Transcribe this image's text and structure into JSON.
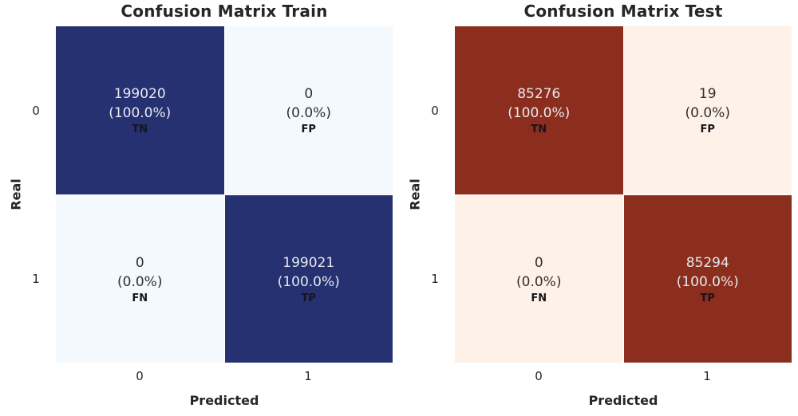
{
  "colors": {
    "train_high": "#253170",
    "train_low": "#f4f9fd",
    "test_high": "#8b2e1e",
    "test_low": "#fdf1e8",
    "title_text": "#262626"
  },
  "axes": {
    "x_label": "Predicted",
    "y_label": "Real",
    "x_ticks": [
      "0",
      "1"
    ],
    "y_ticks": [
      "0",
      "1"
    ]
  },
  "charts": [
    {
      "title": "Confusion Matrix Train",
      "cells": [
        {
          "value": "199020",
          "percent": "(100.0%)",
          "abbr": "TN",
          "tone": "high"
        },
        {
          "value": "0",
          "percent": "(0.0%)",
          "abbr": "FP",
          "tone": "low"
        },
        {
          "value": "0",
          "percent": "(0.0%)",
          "abbr": "FN",
          "tone": "low"
        },
        {
          "value": "199021",
          "percent": "(100.0%)",
          "abbr": "TP",
          "tone": "high"
        }
      ]
    },
    {
      "title": "Confusion Matrix Test",
      "cells": [
        {
          "value": "85276",
          "percent": "(100.0%)",
          "abbr": "TN",
          "tone": "high"
        },
        {
          "value": "19",
          "percent": "(0.0%)",
          "abbr": "FP",
          "tone": "low"
        },
        {
          "value": "0",
          "percent": "(0.0%)",
          "abbr": "FN",
          "tone": "low"
        },
        {
          "value": "85294",
          "percent": "(100.0%)",
          "abbr": "TP",
          "tone": "high"
        }
      ]
    }
  ],
  "chart_data": [
    {
      "type": "heatmap",
      "title": "Confusion Matrix Train",
      "xlabel": "Predicted",
      "ylabel": "Real",
      "x_tick_labels": [
        "0",
        "1"
      ],
      "y_tick_labels": [
        "0",
        "1"
      ],
      "matrix": [
        [
          199020,
          0
        ],
        [
          0,
          199021
        ]
      ],
      "percentages": [
        [
          "100.0%",
          "0.0%"
        ],
        [
          "0.0%",
          "100.0%"
        ]
      ],
      "cell_labels": [
        [
          "TN",
          "FP"
        ],
        [
          "FN",
          "TP"
        ]
      ],
      "colormap": "dark navy for high values, very light blue for low values",
      "legend": "none",
      "grid": false
    },
    {
      "type": "heatmap",
      "title": "Confusion Matrix Test",
      "xlabel": "Predicted",
      "ylabel": "Real",
      "x_tick_labels": [
        "0",
        "1"
      ],
      "y_tick_labels": [
        "0",
        "1"
      ],
      "matrix": [
        [
          85276,
          19
        ],
        [
          0,
          85294
        ]
      ],
      "percentages": [
        [
          "100.0%",
          "0.0%"
        ],
        [
          "0.0%",
          "100.0%"
        ]
      ],
      "cell_labels": [
        [
          "TN",
          "FP"
        ],
        [
          "FN",
          "TP"
        ]
      ],
      "colormap": "dark brick red for high values, very light cream for low values",
      "legend": "none",
      "grid": false
    }
  ]
}
